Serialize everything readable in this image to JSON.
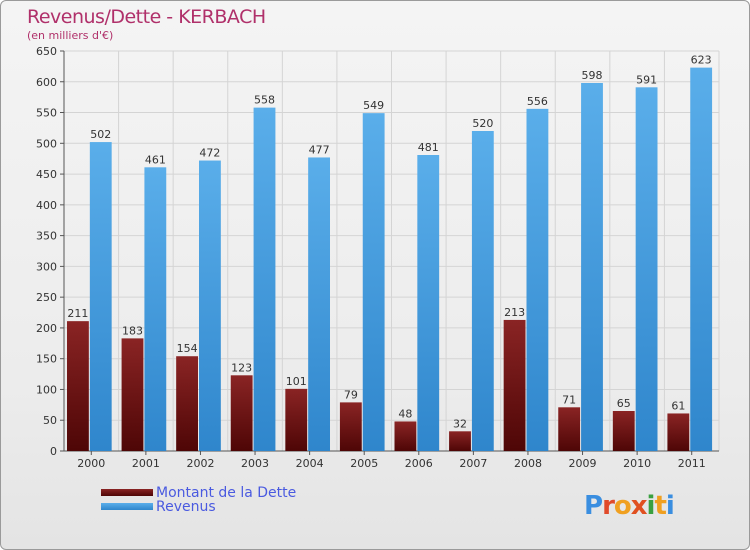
{
  "title": "Revenus/Dette - KERBACH",
  "subtitle": "(en milliers d'€)",
  "colors": {
    "dette": "#7a1010",
    "revenus": "#4a9fe0",
    "title": "#b0306a",
    "legend_text": "#4a5ae0"
  },
  "legend": [
    {
      "label": "Montant de la Dette",
      "color": "#7a1010"
    },
    {
      "label": "Revenus",
      "color": "#4a9fe0"
    }
  ],
  "logo": {
    "text": "Proxiti",
    "icon": "proxiti-logo"
  },
  "chart_data": {
    "type": "bar",
    "categories": [
      "2000",
      "2001",
      "2002",
      "2003",
      "2004",
      "2005",
      "2006",
      "2007",
      "2008",
      "2009",
      "2010",
      "2011"
    ],
    "series": [
      {
        "name": "Montant de la Dette",
        "values": [
          211,
          183,
          154,
          123,
          101,
          79,
          48,
          32,
          213,
          71,
          65,
          61
        ]
      },
      {
        "name": "Revenus",
        "values": [
          502,
          461,
          472,
          558,
          477,
          549,
          481,
          520,
          556,
          598,
          591,
          623
        ]
      }
    ],
    "ylim": [
      0,
      650
    ],
    "yticks": [
      0,
      50,
      100,
      150,
      200,
      250,
      300,
      350,
      400,
      450,
      500,
      550,
      600,
      650
    ],
    "grid": true,
    "legend_position": "bottom-left"
  }
}
